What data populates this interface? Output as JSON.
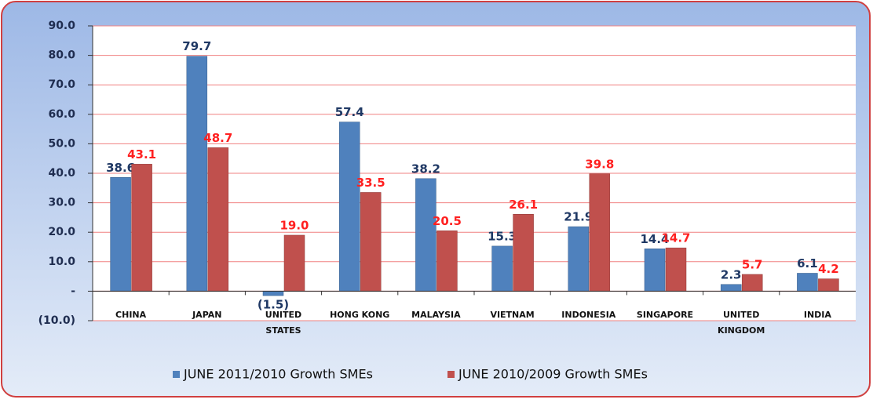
{
  "chart_data": {
    "type": "bar",
    "categories": [
      "CHINA",
      "JAPAN",
      "UNITED STATES",
      "HONG KONG",
      "MALAYSIA",
      "VIETNAM",
      "INDONESIA",
      "SINGAPORE",
      "UNITED KINGDOM",
      "INDIA"
    ],
    "series": [
      {
        "name": "JUNE 2011/2010 Growth SMEs",
        "color": "#4f81bd",
        "values": [
          38.6,
          79.7,
          -1.5,
          57.4,
          38.2,
          15.3,
          21.9,
          14.4,
          2.3,
          6.1
        ],
        "value_labels": [
          "38.6",
          "79.7",
          "(1.5)",
          "57.4",
          "38.2",
          "15.3",
          "21.9",
          "14.4",
          "2.3",
          "6.1"
        ]
      },
      {
        "name": "JUNE 2010/2009 Growth SMEs",
        "color": "#c0504d",
        "values": [
          43.1,
          48.7,
          19.0,
          33.5,
          20.5,
          26.1,
          39.8,
          14.7,
          5.7,
          4.2
        ],
        "value_labels": [
          "43.1",
          "48.7",
          "19.0",
          "33.5",
          "20.5",
          "26.1",
          "39.8",
          "14.7",
          "5.7",
          "4.2"
        ]
      }
    ],
    "ylim": [
      -10,
      90
    ],
    "yticks": [
      {
        "value": -10,
        "label": "(10.0)"
      },
      {
        "value": 0,
        "label": "-"
      },
      {
        "value": 10,
        "label": "10.0"
      },
      {
        "value": 20,
        "label": "20.0"
      },
      {
        "value": 30,
        "label": "30.0"
      },
      {
        "value": 40,
        "label": "40.0"
      },
      {
        "value": 50,
        "label": "50.0"
      },
      {
        "value": 60,
        "label": "60.0"
      },
      {
        "value": 70,
        "label": "70.0"
      },
      {
        "value": 80,
        "label": "80.0"
      },
      {
        "value": 90,
        "label": "90.0"
      }
    ],
    "grid": true,
    "legend": "bottom"
  }
}
